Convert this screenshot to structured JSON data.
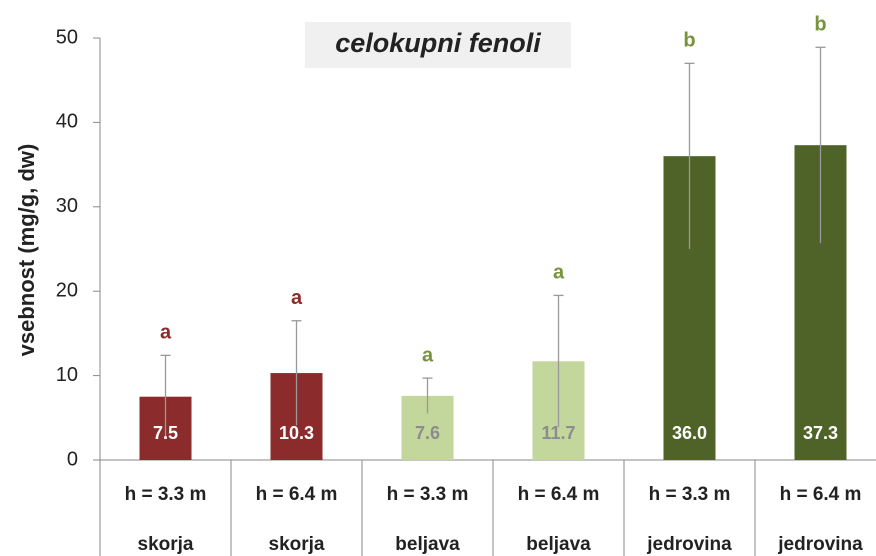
{
  "chart_data": {
    "type": "bar",
    "title": "celokupni fenoli",
    "y_label": "vsebnost (mg/g, dw)",
    "categories": [
      "h = 3.3 m",
      "h = 6.4 m",
      "h = 3.3 m",
      "h = 6.4 m",
      "h = 3.3 m",
      "h = 6.4 m"
    ],
    "category_groups": [
      "skorja",
      "skorja",
      "beljava",
      "beljava",
      "jedrovina",
      "jedrovina"
    ],
    "values": [
      7.5,
      10.3,
      7.6,
      11.7,
      36.0,
      37.3
    ],
    "value_labels": [
      "7.5",
      "10.3",
      "7.6",
      "11.7",
      "36.0",
      "37.3"
    ],
    "errors": [
      4.9,
      6.2,
      2.1,
      7.8,
      11.0,
      11.6
    ],
    "significance": [
      "a",
      "a",
      "a",
      "a",
      "b",
      "b"
    ],
    "colors": [
      "#8b2b2b",
      "#8b2b2b",
      "#c3d69b",
      "#c3d69b",
      "#4f6228",
      "#4f6228"
    ],
    "ylim": [
      0,
      50
    ],
    "yticks": [
      0,
      10,
      20,
      30,
      40,
      50
    ],
    "grid": false
  }
}
